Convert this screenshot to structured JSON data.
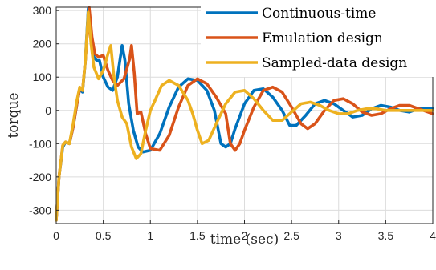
{
  "chart_data": {
    "type": "line",
    "title": "",
    "xlabel": "time (sec)",
    "ylabel": "torque",
    "xlim": [
      0,
      4
    ],
    "ylim": [
      -340,
      310
    ],
    "xticks": [
      0,
      0.5,
      1,
      1.5,
      2,
      2.5,
      3,
      3.5,
      4
    ],
    "xtick_labels": [
      "0",
      "0.5",
      "1",
      "1.5",
      "2",
      "2.5",
      "3",
      "3.5",
      "4"
    ],
    "yticks": [
      -300,
      -200,
      -100,
      0,
      100,
      200,
      300
    ],
    "ytick_labels": [
      "-300",
      "-200",
      "-100",
      "0",
      "100",
      "200",
      "300"
    ],
    "grid": true,
    "legend_position": "top-right",
    "series": [
      {
        "name": "Continuous-time",
        "color": "#0072BD",
        "points": [
          [
            0,
            -330
          ],
          [
            0.03,
            -200
          ],
          [
            0.07,
            -110
          ],
          [
            0.1,
            -95
          ],
          [
            0.14,
            -100
          ],
          [
            0.18,
            -50
          ],
          [
            0.22,
            20
          ],
          [
            0.25,
            65
          ],
          [
            0.28,
            55
          ],
          [
            0.31,
            150
          ],
          [
            0.34,
            305
          ],
          [
            0.37,
            220
          ],
          [
            0.4,
            160
          ],
          [
            0.43,
            150
          ],
          [
            0.46,
            150
          ],
          [
            0.5,
            100
          ],
          [
            0.55,
            70
          ],
          [
            0.6,
            60
          ],
          [
            0.65,
            100
          ],
          [
            0.7,
            195
          ],
          [
            0.73,
            150
          ],
          [
            0.77,
            20
          ],
          [
            0.82,
            -60
          ],
          [
            0.87,
            -110
          ],
          [
            0.92,
            -125
          ],
          [
            1.0,
            -120
          ],
          [
            1.1,
            -70
          ],
          [
            1.2,
            10
          ],
          [
            1.3,
            70
          ],
          [
            1.4,
            95
          ],
          [
            1.5,
            90
          ],
          [
            1.6,
            60
          ],
          [
            1.68,
            0
          ],
          [
            1.75,
            -100
          ],
          [
            1.8,
            -110
          ],
          [
            1.85,
            -100
          ],
          [
            1.9,
            -55
          ],
          [
            2.0,
            20
          ],
          [
            2.1,
            60
          ],
          [
            2.2,
            65
          ],
          [
            2.3,
            40
          ],
          [
            2.4,
            0
          ],
          [
            2.48,
            -45
          ],
          [
            2.55,
            -45
          ],
          [
            2.65,
            -15
          ],
          [
            2.75,
            20
          ],
          [
            2.85,
            30
          ],
          [
            2.95,
            20
          ],
          [
            3.05,
            0
          ],
          [
            3.15,
            -20
          ],
          [
            3.25,
            -15
          ],
          [
            3.35,
            5
          ],
          [
            3.45,
            15
          ],
          [
            3.55,
            10
          ],
          [
            3.65,
            0
          ],
          [
            3.75,
            -5
          ],
          [
            3.85,
            5
          ],
          [
            4.0,
            5
          ]
        ]
      },
      {
        "name": "Emulation design",
        "color": "#D95319",
        "points": [
          [
            0,
            -330
          ],
          [
            0.03,
            -200
          ],
          [
            0.07,
            -105
          ],
          [
            0.1,
            -95
          ],
          [
            0.14,
            -100
          ],
          [
            0.18,
            -50
          ],
          [
            0.22,
            20
          ],
          [
            0.25,
            65
          ],
          [
            0.28,
            60
          ],
          [
            0.31,
            150
          ],
          [
            0.35,
            310
          ],
          [
            0.38,
            220
          ],
          [
            0.41,
            170
          ],
          [
            0.45,
            160
          ],
          [
            0.5,
            165
          ],
          [
            0.55,
            120
          ],
          [
            0.6,
            90
          ],
          [
            0.65,
            75
          ],
          [
            0.72,
            95
          ],
          [
            0.78,
            155
          ],
          [
            0.8,
            195
          ],
          [
            0.83,
            110
          ],
          [
            0.86,
            -10
          ],
          [
            0.9,
            -5
          ],
          [
            0.95,
            -70
          ],
          [
            1.0,
            -115
          ],
          [
            1.1,
            -120
          ],
          [
            1.2,
            -75
          ],
          [
            1.3,
            10
          ],
          [
            1.4,
            75
          ],
          [
            1.5,
            95
          ],
          [
            1.6,
            80
          ],
          [
            1.7,
            40
          ],
          [
            1.8,
            -10
          ],
          [
            1.85,
            -100
          ],
          [
            1.9,
            -120
          ],
          [
            1.95,
            -100
          ],
          [
            2.0,
            -60
          ],
          [
            2.1,
            10
          ],
          [
            2.2,
            60
          ],
          [
            2.3,
            70
          ],
          [
            2.4,
            55
          ],
          [
            2.5,
            10
          ],
          [
            2.6,
            -40
          ],
          [
            2.67,
            -55
          ],
          [
            2.75,
            -40
          ],
          [
            2.85,
            0
          ],
          [
            2.95,
            30
          ],
          [
            3.05,
            35
          ],
          [
            3.15,
            20
          ],
          [
            3.25,
            -5
          ],
          [
            3.35,
            -15
          ],
          [
            3.45,
            -10
          ],
          [
            3.55,
            5
          ],
          [
            3.65,
            15
          ],
          [
            3.75,
            15
          ],
          [
            3.85,
            5
          ],
          [
            4.0,
            -10
          ]
        ]
      },
      {
        "name": "Sampled-data design",
        "color": "#EDB120",
        "points": [
          [
            0,
            -330
          ],
          [
            0.03,
            -200
          ],
          [
            0.07,
            -105
          ],
          [
            0.1,
            -95
          ],
          [
            0.14,
            -100
          ],
          [
            0.18,
            -40
          ],
          [
            0.22,
            30
          ],
          [
            0.25,
            70
          ],
          [
            0.28,
            60
          ],
          [
            0.31,
            150
          ],
          [
            0.34,
            295
          ],
          [
            0.37,
            200
          ],
          [
            0.4,
            130
          ],
          [
            0.45,
            95
          ],
          [
            0.5,
            120
          ],
          [
            0.55,
            170
          ],
          [
            0.58,
            195
          ],
          [
            0.61,
            110
          ],
          [
            0.65,
            30
          ],
          [
            0.7,
            -20
          ],
          [
            0.75,
            -40
          ],
          [
            0.8,
            -110
          ],
          [
            0.85,
            -145
          ],
          [
            0.9,
            -130
          ],
          [
            0.95,
            -60
          ],
          [
            1.0,
            0
          ],
          [
            1.05,
            30
          ],
          [
            1.12,
            75
          ],
          [
            1.2,
            90
          ],
          [
            1.3,
            75
          ],
          [
            1.4,
            30
          ],
          [
            1.45,
            -10
          ],
          [
            1.5,
            -60
          ],
          [
            1.55,
            -100
          ],
          [
            1.62,
            -90
          ],
          [
            1.7,
            -40
          ],
          [
            1.8,
            20
          ],
          [
            1.9,
            55
          ],
          [
            2.0,
            60
          ],
          [
            2.1,
            35
          ],
          [
            2.2,
            0
          ],
          [
            2.3,
            -30
          ],
          [
            2.4,
            -30
          ],
          [
            2.5,
            -5
          ],
          [
            2.6,
            20
          ],
          [
            2.7,
            25
          ],
          [
            2.8,
            15
          ],
          [
            2.9,
            0
          ],
          [
            3.0,
            -10
          ],
          [
            3.1,
            -10
          ],
          [
            3.2,
            0
          ],
          [
            3.3,
            5
          ],
          [
            3.4,
            5
          ],
          [
            3.5,
            0
          ],
          [
            3.6,
            0
          ],
          [
            3.7,
            0
          ],
          [
            3.8,
            0
          ],
          [
            4.0,
            0
          ]
        ]
      }
    ]
  }
}
